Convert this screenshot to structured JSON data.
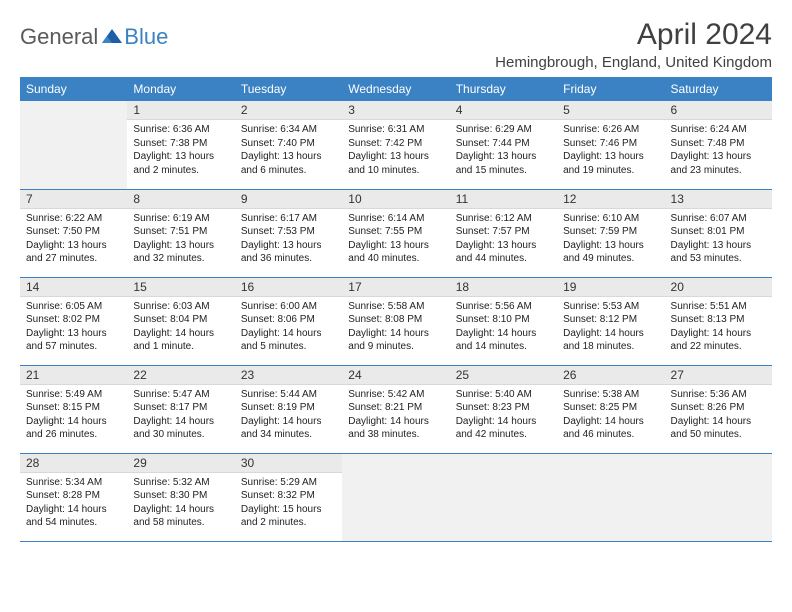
{
  "logo": {
    "general": "General",
    "blue": "Blue"
  },
  "title": "April 2024",
  "location": "Hemingbrough, England, United Kingdom",
  "weekdays": [
    "Sunday",
    "Monday",
    "Tuesday",
    "Wednesday",
    "Thursday",
    "Friday",
    "Saturday"
  ],
  "colors": {
    "header_bg": "#3b82c4",
    "header_text": "#ffffff",
    "daynum_bg": "#eaeaea",
    "empty_bg": "#f1f1f1",
    "border": "#3b82c4"
  },
  "weeks": [
    [
      null,
      {
        "n": "1",
        "sr": "6:36 AM",
        "ss": "7:38 PM",
        "dl": "13 hours and 2 minutes."
      },
      {
        "n": "2",
        "sr": "6:34 AM",
        "ss": "7:40 PM",
        "dl": "13 hours and 6 minutes."
      },
      {
        "n": "3",
        "sr": "6:31 AM",
        "ss": "7:42 PM",
        "dl": "13 hours and 10 minutes."
      },
      {
        "n": "4",
        "sr": "6:29 AM",
        "ss": "7:44 PM",
        "dl": "13 hours and 15 minutes."
      },
      {
        "n": "5",
        "sr": "6:26 AM",
        "ss": "7:46 PM",
        "dl": "13 hours and 19 minutes."
      },
      {
        "n": "6",
        "sr": "6:24 AM",
        "ss": "7:48 PM",
        "dl": "13 hours and 23 minutes."
      }
    ],
    [
      {
        "n": "7",
        "sr": "6:22 AM",
        "ss": "7:50 PM",
        "dl": "13 hours and 27 minutes."
      },
      {
        "n": "8",
        "sr": "6:19 AM",
        "ss": "7:51 PM",
        "dl": "13 hours and 32 minutes."
      },
      {
        "n": "9",
        "sr": "6:17 AM",
        "ss": "7:53 PM",
        "dl": "13 hours and 36 minutes."
      },
      {
        "n": "10",
        "sr": "6:14 AM",
        "ss": "7:55 PM",
        "dl": "13 hours and 40 minutes."
      },
      {
        "n": "11",
        "sr": "6:12 AM",
        "ss": "7:57 PM",
        "dl": "13 hours and 44 minutes."
      },
      {
        "n": "12",
        "sr": "6:10 AM",
        "ss": "7:59 PM",
        "dl": "13 hours and 49 minutes."
      },
      {
        "n": "13",
        "sr": "6:07 AM",
        "ss": "8:01 PM",
        "dl": "13 hours and 53 minutes."
      }
    ],
    [
      {
        "n": "14",
        "sr": "6:05 AM",
        "ss": "8:02 PM",
        "dl": "13 hours and 57 minutes."
      },
      {
        "n": "15",
        "sr": "6:03 AM",
        "ss": "8:04 PM",
        "dl": "14 hours and 1 minute."
      },
      {
        "n": "16",
        "sr": "6:00 AM",
        "ss": "8:06 PM",
        "dl": "14 hours and 5 minutes."
      },
      {
        "n": "17",
        "sr": "5:58 AM",
        "ss": "8:08 PM",
        "dl": "14 hours and 9 minutes."
      },
      {
        "n": "18",
        "sr": "5:56 AM",
        "ss": "8:10 PM",
        "dl": "14 hours and 14 minutes."
      },
      {
        "n": "19",
        "sr": "5:53 AM",
        "ss": "8:12 PM",
        "dl": "14 hours and 18 minutes."
      },
      {
        "n": "20",
        "sr": "5:51 AM",
        "ss": "8:13 PM",
        "dl": "14 hours and 22 minutes."
      }
    ],
    [
      {
        "n": "21",
        "sr": "5:49 AM",
        "ss": "8:15 PM",
        "dl": "14 hours and 26 minutes."
      },
      {
        "n": "22",
        "sr": "5:47 AM",
        "ss": "8:17 PM",
        "dl": "14 hours and 30 minutes."
      },
      {
        "n": "23",
        "sr": "5:44 AM",
        "ss": "8:19 PM",
        "dl": "14 hours and 34 minutes."
      },
      {
        "n": "24",
        "sr": "5:42 AM",
        "ss": "8:21 PM",
        "dl": "14 hours and 38 minutes."
      },
      {
        "n": "25",
        "sr": "5:40 AM",
        "ss": "8:23 PM",
        "dl": "14 hours and 42 minutes."
      },
      {
        "n": "26",
        "sr": "5:38 AM",
        "ss": "8:25 PM",
        "dl": "14 hours and 46 minutes."
      },
      {
        "n": "27",
        "sr": "5:36 AM",
        "ss": "8:26 PM",
        "dl": "14 hours and 50 minutes."
      }
    ],
    [
      {
        "n": "28",
        "sr": "5:34 AM",
        "ss": "8:28 PM",
        "dl": "14 hours and 54 minutes."
      },
      {
        "n": "29",
        "sr": "5:32 AM",
        "ss": "8:30 PM",
        "dl": "14 hours and 58 minutes."
      },
      {
        "n": "30",
        "sr": "5:29 AM",
        "ss": "8:32 PM",
        "dl": "15 hours and 2 minutes."
      },
      null,
      null,
      null,
      null
    ]
  ],
  "labels": {
    "sunrise": "Sunrise:",
    "sunset": "Sunset:",
    "daylight": "Daylight:"
  }
}
